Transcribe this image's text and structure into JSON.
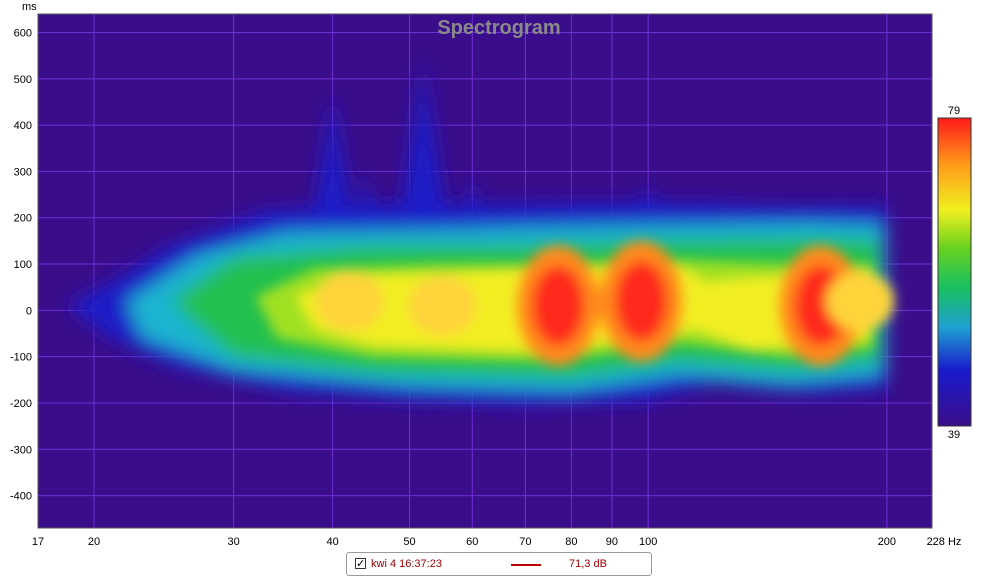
{
  "chart_data": {
    "type": "heatmap",
    "title": "Spectrogram",
    "xlabel": "Hz",
    "ylabel": "ms",
    "x_scale": "log",
    "xlim": [
      17,
      228
    ],
    "ylim": [
      -470,
      640
    ],
    "x_ticks": [
      17,
      20,
      30,
      40,
      50,
      60,
      70,
      80,
      90,
      100,
      200,
      228
    ],
    "x_tick_labels": [
      "17",
      "20",
      "30",
      "40",
      "50",
      "60",
      "70",
      "80",
      "90",
      "100",
      "200",
      "228 Hz"
    ],
    "y_ticks": [
      600,
      500,
      400,
      300,
      200,
      100,
      0,
      -100,
      -200,
      -300,
      -400
    ],
    "colorbar": {
      "max_label": "79",
      "min_label": "39",
      "max": 79,
      "min": 39
    },
    "grid": true,
    "background_color": "#3a0e8a",
    "grid_color": "#6f2fd6",
    "energy_peaks": [
      {
        "freq": 42,
        "time": 20,
        "level": 72
      },
      {
        "freq": 55,
        "time": 10,
        "level": 71
      },
      {
        "freq": 77,
        "time": 10,
        "level": 78
      },
      {
        "freq": 98,
        "time": 20,
        "level": 77
      },
      {
        "freq": 165,
        "time": 10,
        "level": 78
      },
      {
        "freq": 185,
        "time": 20,
        "level": 75
      }
    ]
  },
  "legend": {
    "checked": true,
    "measurement_name": "kwi 4 16:37:23",
    "line_color": "#c00000",
    "level": "71,3 dB"
  }
}
